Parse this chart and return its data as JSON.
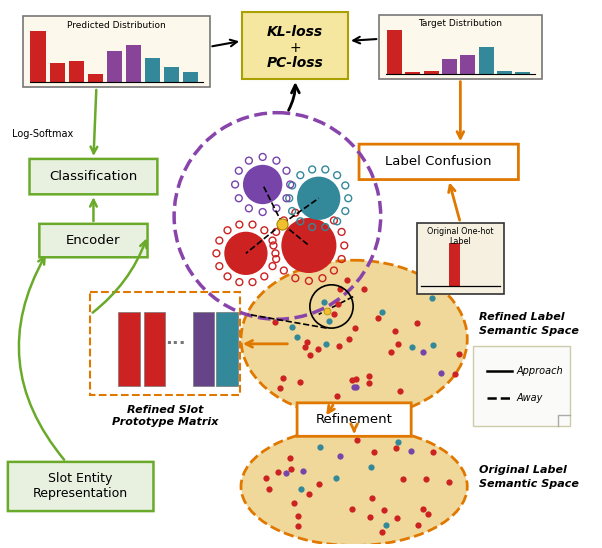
{
  "fig_width": 6.02,
  "fig_height": 5.48,
  "dpi": 100,
  "bg_color": "#ffffff",
  "pred_dist_title": "Predicted Distribution",
  "pred_dist_values": [
    0.85,
    0.32,
    0.36,
    0.14,
    0.52,
    0.62,
    0.4,
    0.26,
    0.17
  ],
  "pred_dist_colors": [
    "#cc2222",
    "#cc2222",
    "#cc2222",
    "#cc2222",
    "#884499",
    "#884499",
    "#338899",
    "#338899",
    "#338899"
  ],
  "target_dist_title": "Target Distribution",
  "target_dist_values": [
    0.95,
    0.04,
    0.06,
    0.32,
    0.4,
    0.58,
    0.07,
    0.04
  ],
  "target_dist_colors": [
    "#cc2222",
    "#cc2222",
    "#cc2222",
    "#884499",
    "#884499",
    "#338899",
    "#338899",
    "#338899"
  ],
  "kl_box_color": "#f5e6a0",
  "kl_box_edge": "#aaa000",
  "label_confusion_color": "#ffffff",
  "label_confusion_edge": "#e07800",
  "classification_color": "#e8f0e0",
  "classification_edge": "#6aaa2a",
  "encoder_color": "#e8f0e0",
  "encoder_edge": "#6aaa2a",
  "slot_entity_color": "#e8f0e0",
  "slot_entity_edge": "#6aaa2a",
  "refinement_color": "#ffffff",
  "refinement_edge": "#e07800",
  "ellipse_color": "#f0d89a",
  "ellipse_edge": "#e07800",
  "dot_red": "#cc2222",
  "dot_teal": "#338899",
  "dot_purple": "#7744aa",
  "prototype_circle_edge": "#8844aa",
  "log_softmax_text": "Log-Softmax",
  "original_onehot_text": "Original One-hot\nLabel",
  "prototype_label": "Refined Slot\nPrototype Matrix",
  "refined_label_text": "Refined Label\nSemantic Space",
  "original_label_text": "Original Label\nSemantic Space"
}
